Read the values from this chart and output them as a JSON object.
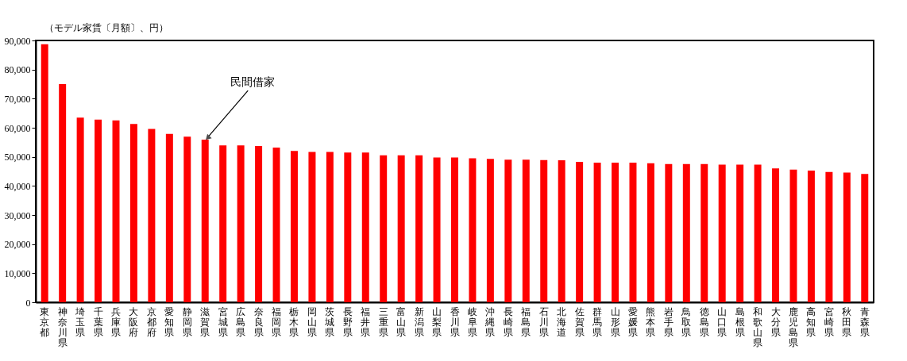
{
  "chart_data": {
    "type": "bar",
    "ylabel": "（モデル家賃〔月額〕、円）",
    "categories": [
      "東京都",
      "神奈川県",
      "埼玉県",
      "千葉県",
      "兵庫県",
      "大阪府",
      "京都府",
      "愛知県",
      "静岡県",
      "滋賀県",
      "宮城県",
      "広島県",
      "奈良県",
      "福岡県",
      "栃木県",
      "岡山県",
      "茨城県",
      "長野県",
      "福井県",
      "三重県",
      "富山県",
      "新潟県",
      "山梨県",
      "香川県",
      "岐阜県",
      "沖縄県",
      "長崎県",
      "福島県",
      "石川県",
      "北海道",
      "佐賀県",
      "群馬県",
      "山形県",
      "愛媛県",
      "熊本県",
      "岩手県",
      "鳥取県",
      "徳島県",
      "山口県",
      "島根県",
      "和歌山県",
      "大分県",
      "鹿児島県",
      "高知県",
      "宮崎県",
      "秋田県",
      "青森県"
    ],
    "values": [
      88700,
      75000,
      63500,
      62800,
      62500,
      61300,
      59600,
      57900,
      56900,
      55900,
      53900,
      53900,
      53700,
      53200,
      52000,
      51700,
      51700,
      51500,
      51500,
      50500,
      50500,
      50500,
      49800,
      49800,
      49500,
      49300,
      49000,
      49000,
      48900,
      48800,
      48300,
      48000,
      48000,
      48000,
      47800,
      47500,
      47500,
      47500,
      47300,
      47300,
      47300,
      46000,
      45600,
      45300,
      44800,
      44600,
      44100
    ],
    "color": "#ff0000",
    "ylim": [
      0,
      90000
    ],
    "yticks": [
      0,
      {
        "value": 10000,
        "label": "10,000"
      },
      {
        "value": 20000,
        "label": "20,000"
      },
      {
        "value": 30000,
        "label": "30,000"
      },
      {
        "value": 40000,
        "label": "40,000"
      },
      {
        "value": 50000,
        "label": "50,000"
      },
      {
        "value": 60000,
        "label": "60,000"
      },
      {
        "value": 70000,
        "label": "70,000"
      },
      {
        "value": 80000,
        "label": "80,000"
      },
      {
        "value": 90000,
        "label": "90,000"
      }
    ],
    "grid": false,
    "annotations": [
      {
        "text": "民間借家",
        "x": "滋賀県",
        "y": 55900
      }
    ]
  }
}
